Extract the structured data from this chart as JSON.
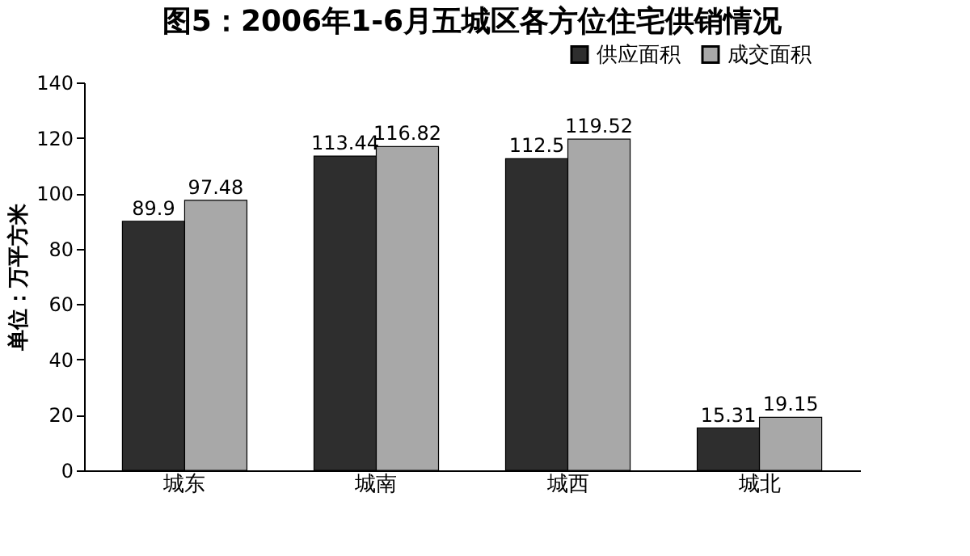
{
  "chart_data": {
    "type": "bar",
    "title": "图5：2006年1-6月五城区各方位住宅供销情况",
    "ylabel": "单位：万平方米",
    "categories": [
      "城东",
      "城南",
      "城西",
      "城北"
    ],
    "series": [
      {
        "name": "供应面积",
        "color": "#2e2e2e",
        "values": [
          89.9,
          113.44,
          112.5,
          15.31
        ]
      },
      {
        "name": "成交面积",
        "color": "#a8a8a8",
        "values": [
          97.48,
          116.82,
          119.52,
          19.15
        ]
      }
    ],
    "ylim": [
      0,
      140
    ],
    "yticks": [
      0,
      20,
      40,
      60,
      80,
      100,
      120,
      140
    ],
    "grid": false,
    "legend": "top right",
    "data_labels": true
  }
}
